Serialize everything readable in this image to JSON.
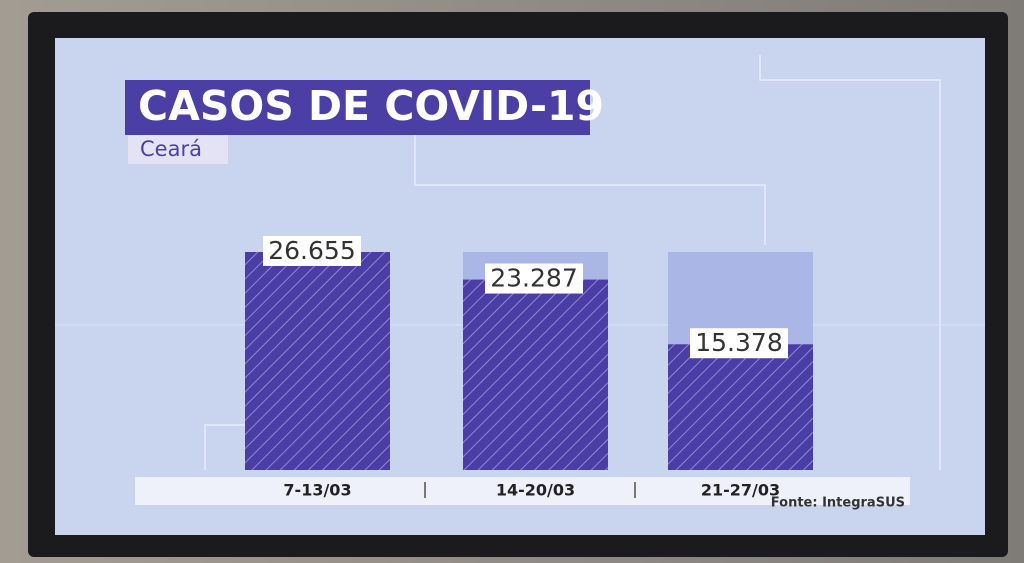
{
  "chart_data": {
    "type": "bar",
    "title": "CASOS DE COVID-19",
    "subtitle": "Ceará",
    "categories": [
      "7-13/03",
      "14-20/03",
      "21-27/03"
    ],
    "values": [
      26655,
      23287,
      15378
    ],
    "value_labels": [
      "26.655",
      "23.287",
      "15.378"
    ],
    "color": "#4a3ea6",
    "source": "Fonte: IntegraSUS"
  }
}
